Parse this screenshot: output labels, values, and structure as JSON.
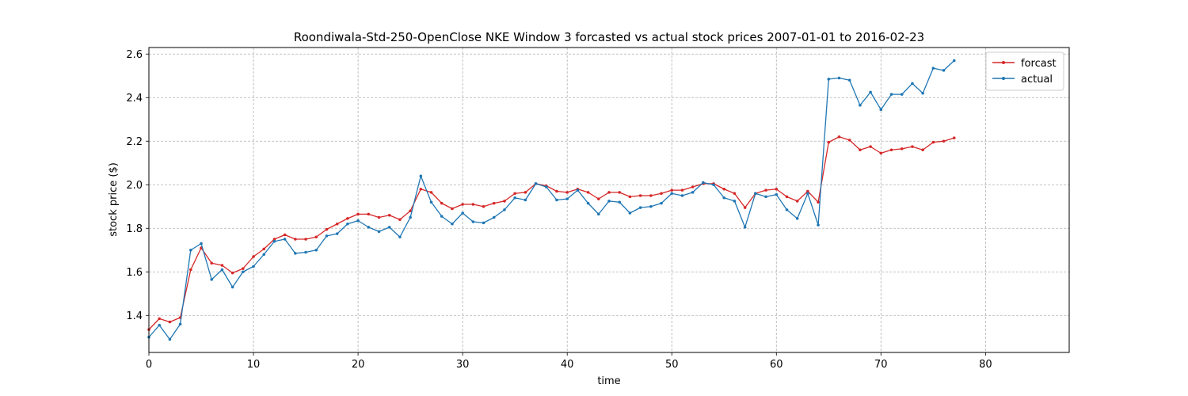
{
  "chart_data": {
    "type": "line",
    "title": "Roondiwala-Std-250-OpenClose NKE Window 3 forcasted vs actual stock prices 2007-01-01 to 2016-02-23",
    "xlabel": "time",
    "ylabel": "stock price ($)",
    "xlim": [
      0,
      88
    ],
    "ylim": [
      1.23,
      2.63
    ],
    "xticks": [
      0,
      10,
      20,
      30,
      40,
      50,
      60,
      70,
      80
    ],
    "yticks": [
      1.4,
      1.6,
      1.8,
      2.0,
      2.2,
      2.4,
      2.6
    ],
    "xtick_labels": [
      "0",
      "10",
      "20",
      "30",
      "40",
      "50",
      "60",
      "70",
      "80"
    ],
    "ytick_labels": [
      "1.4",
      "1.6",
      "1.8",
      "2.0",
      "2.2",
      "2.4",
      "2.6"
    ],
    "grid": true,
    "legend_position": "top-right",
    "series": [
      {
        "name": "forcast",
        "color": "#d62728",
        "values": [
          1.335,
          1.385,
          1.37,
          1.39,
          1.61,
          1.71,
          1.64,
          1.63,
          1.595,
          1.615,
          1.67,
          1.705,
          1.75,
          1.77,
          1.75,
          1.75,
          1.76,
          1.795,
          1.82,
          1.845,
          1.865,
          1.865,
          1.85,
          1.86,
          1.84,
          1.88,
          1.98,
          1.965,
          1.915,
          1.89,
          1.91,
          1.91,
          1.9,
          1.915,
          1.925,
          1.96,
          1.965,
          2.005,
          1.995,
          1.97,
          1.965,
          1.98,
          1.965,
          1.935,
          1.965,
          1.965,
          1.945,
          1.95,
          1.95,
          1.96,
          1.975,
          1.975,
          1.99,
          2.005,
          2.005,
          1.98,
          1.96,
          1.895,
          1.96,
          1.975,
          1.98,
          1.945,
          1.925,
          1.97,
          1.92,
          2.195,
          2.22,
          2.205,
          2.16,
          2.175,
          2.145,
          2.16,
          2.165,
          2.175,
          2.16,
          2.195,
          2.2,
          2.215
        ]
      },
      {
        "name": "actual",
        "color": "#1f77b4",
        "values": [
          1.3,
          1.355,
          1.29,
          1.36,
          1.7,
          1.73,
          1.565,
          1.61,
          1.53,
          1.6,
          1.625,
          1.68,
          1.74,
          1.75,
          1.685,
          1.69,
          1.7,
          1.765,
          1.775,
          1.82,
          1.835,
          1.805,
          1.785,
          1.805,
          1.76,
          1.85,
          2.04,
          1.92,
          1.855,
          1.82,
          1.87,
          1.83,
          1.825,
          1.85,
          1.885,
          1.94,
          1.93,
          2.005,
          1.99,
          1.93,
          1.935,
          1.975,
          1.915,
          1.865,
          1.925,
          1.92,
          1.87,
          1.895,
          1.9,
          1.915,
          1.96,
          1.95,
          1.965,
          2.01,
          2.0,
          1.94,
          1.925,
          1.805,
          1.96,
          1.945,
          1.955,
          1.885,
          1.845,
          1.96,
          1.815,
          2.485,
          2.49,
          2.48,
          2.365,
          2.425,
          2.345,
          2.415,
          2.415,
          2.465,
          2.42,
          2.535,
          2.525,
          2.57
        ]
      }
    ]
  }
}
